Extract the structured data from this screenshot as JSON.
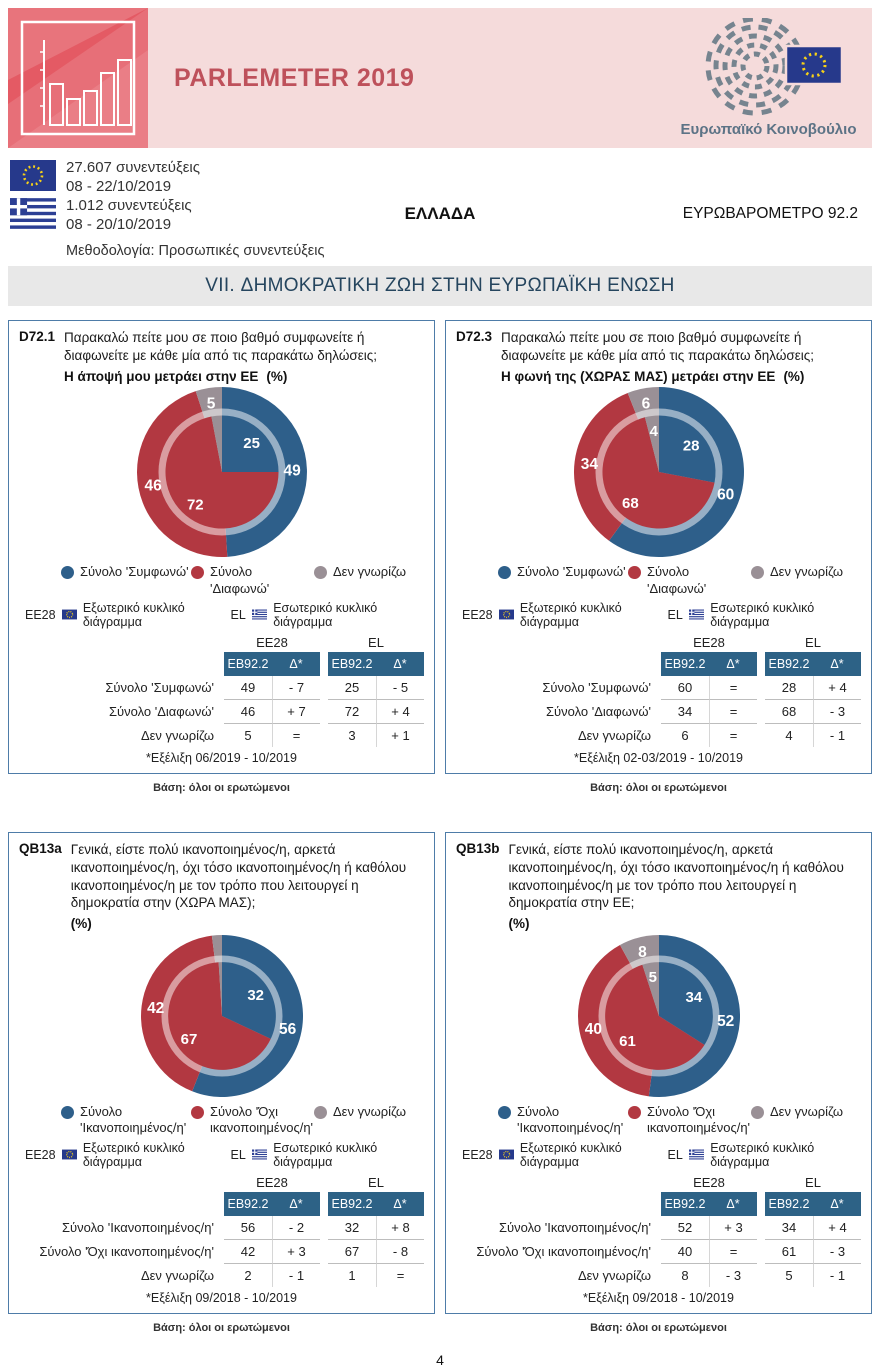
{
  "banner": {
    "title": "PARLEMETER 2019",
    "ep_caption": "Ευρωπαϊκό Κοινοβούλιο"
  },
  "meta": {
    "eu_interviews": "27.607 συνεντεύξεις",
    "eu_dates": "08 - 22/10/2019",
    "el_interviews": "1.012 συνεντεύξεις",
    "el_dates": "08 - 20/10/2019",
    "methodology": "Μεθοδολογία: Προσωπικές συνεντεύξεις",
    "country": "ΕΛΛΑΔΑ",
    "survey": "ΕΥΡΩΒΑΡΟΜΕΤΡΟ 92.2"
  },
  "section_title": "VII. ΔΗΜΟΚΡΑΤΙΚΗ ΖΩΗ ΣΤΗΝ ΕΥΡΩΠΑΪΚΗ ΕΝΩΣΗ",
  "shared": {
    "outer_ring_label": "EE28",
    "outer_ring_text": "Εξωτερικό κυκλικό διάγραμμα",
    "inner_ring_label": "EL",
    "inner_ring_text": "Εσωτερικό κυκλικό διάγραμμα",
    "base": "Βάση: όλοι οι ερωτώμενοι",
    "col_headers": [
      "EB92.2",
      "Δ*"
    ]
  },
  "colors": {
    "blue": "#2E5F8A",
    "red": "#B23841",
    "grey": "#9A9096",
    "table_header_blue": "#2D6286",
    "panel_border": "#4E7CA8",
    "banner_pink": "#F5DBDB",
    "logo_red": "#E45A64",
    "title_red": "#BE515B",
    "section_grey": "#E8E8E8",
    "ep_grey": "#76848F",
    "eu_flag_blue": "#26398B",
    "star_yellow": "#F7D117"
  },
  "page_number": "4",
  "panels": [
    {
      "id": "D72.1",
      "question": "Παρακαλώ πείτε μου σε ποιο βαθμό συμφωνείτε ή διαφωνείτε με κάθε μία από τις παρακάτω δηλώσεις;",
      "statement": "Η άποψή μου μετράει στην ΕΕ",
      "pct": "(%)",
      "legend": [
        {
          "label": "Σύνολο 'Συμφωνώ'",
          "color": "blue"
        },
        {
          "label": "Σύνολο 'Διαφωνώ'",
          "color": "red"
        },
        {
          "label": "Δεν γνωρίζω",
          "color": "grey"
        }
      ],
      "donut": {
        "outer": [
          49,
          46,
          5
        ],
        "inner": [
          25,
          72,
          3
        ],
        "outer_labels": [
          "49",
          "46",
          "5"
        ],
        "inner_labels": [
          "25",
          "72",
          ""
        ]
      },
      "table": {
        "group_headers": [
          "EE28",
          "EL"
        ],
        "rows": [
          {
            "label": "Σύνολο 'Συμφωνώ'",
            "values": [
              "49",
              "- 7",
              "25",
              "- 5"
            ]
          },
          {
            "label": "Σύνολο 'Διαφωνώ'",
            "values": [
              "46",
              "+ 7",
              "72",
              "+ 4"
            ]
          },
          {
            "label": "Δεν γνωρίζω",
            "values": [
              "5",
              "=",
              "3",
              "+ 1"
            ]
          }
        ],
        "footnote": "*Εξέλιξη 06/2019 - 10/2019"
      }
    },
    {
      "id": "D72.3",
      "question": "Παρακαλώ πείτε μου σε ποιο βαθμό συμφωνείτε ή διαφωνείτε με κάθε μία από τις παρακάτω δηλώσεις;",
      "statement": "Η φωνή της (ΧΩΡΑΣ ΜΑΣ) μετράει στην ΕΕ",
      "pct": "(%)",
      "legend": [
        {
          "label": "Σύνολο 'Συμφωνώ'",
          "color": "blue"
        },
        {
          "label": "Σύνολο 'Διαφωνώ'",
          "color": "red"
        },
        {
          "label": "Δεν γνωρίζω",
          "color": "grey"
        }
      ],
      "donut": {
        "outer": [
          60,
          34,
          6
        ],
        "inner": [
          28,
          68,
          4
        ],
        "outer_labels": [
          "60",
          "34",
          "6"
        ],
        "inner_labels": [
          "28",
          "68",
          "4"
        ]
      },
      "table": {
        "group_headers": [
          "EE28",
          "EL"
        ],
        "rows": [
          {
            "label": "Σύνολο 'Συμφωνώ'",
            "values": [
              "60",
              "=",
              "28",
              "+ 4"
            ]
          },
          {
            "label": "Σύνολο 'Διαφωνώ'",
            "values": [
              "34",
              "=",
              "68",
              "- 3"
            ]
          },
          {
            "label": "Δεν γνωρίζω",
            "values": [
              "6",
              "=",
              "4",
              "- 1"
            ]
          }
        ],
        "footnote": "*Εξέλιξη 02-03/2019 - 10/2019"
      }
    },
    {
      "id": "QB13a",
      "question": "Γενικά, είστε πολύ ικανοποιημένος/η, αρκετά ικανοποιημένος/η, όχι τόσο ικανοποιημένος/η ή καθόλου ικανοποιημένος/η με τον τρόπο που λειτουργεί η δημοκρατία στην (ΧΩΡΑ ΜΑΣ);",
      "statement": "",
      "pct": "(%)",
      "legend": [
        {
          "label": "Σύνολο\n'Ικανοποιημένος/η'",
          "color": "blue"
        },
        {
          "label": "Σύνολο 'Όχι\nικανοποιημένος/η'",
          "color": "red"
        },
        {
          "label": "Δεν γνωρίζω",
          "color": "grey"
        }
      ],
      "donut": {
        "outer": [
          56,
          42,
          2
        ],
        "inner": [
          32,
          67,
          1
        ],
        "outer_labels": [
          "56",
          "42",
          ""
        ],
        "inner_labels": [
          "32",
          "67",
          ""
        ]
      },
      "table": {
        "group_headers": [
          "EE28",
          "EL"
        ],
        "rows": [
          {
            "label": "Σύνολο 'Ικανοποιημένος/η'",
            "values": [
              "56",
              "- 2",
              "32",
              "+ 8"
            ]
          },
          {
            "label": "Σύνολο 'Όχι ικανοποιημένος/η'",
            "values": [
              "42",
              "+ 3",
              "67",
              "- 8"
            ]
          },
          {
            "label": "Δεν γνωρίζω",
            "values": [
              "2",
              "- 1",
              "1",
              "="
            ]
          }
        ],
        "footnote": "*Εξέλιξη 09/2018 - 10/2019"
      }
    },
    {
      "id": "QB13b",
      "question": "Γενικά, είστε πολύ ικανοποιημένος/η, αρκετά ικανοποιημένος/η, όχι τόσο ικανοποιημένος/η ή καθόλου ικανοποιημένος/η με τον τρόπο που λειτουργεί η δημοκρατία στην ΕΕ;",
      "statement": "",
      "pct": "(%)",
      "legend": [
        {
          "label": "Σύνολο\n'Ικανοποιημένος/η'",
          "color": "blue"
        },
        {
          "label": "Σύνολο 'Όχι\nικανοποιημένος/η'",
          "color": "red"
        },
        {
          "label": "Δεν γνωρίζω",
          "color": "grey"
        }
      ],
      "donut": {
        "outer": [
          52,
          40,
          8
        ],
        "inner": [
          34,
          61,
          5
        ],
        "outer_labels": [
          "52",
          "40",
          "8"
        ],
        "inner_labels": [
          "34",
          "61",
          "5"
        ]
      },
      "table": {
        "group_headers": [
          "EE28",
          "EL"
        ],
        "rows": [
          {
            "label": "Σύνολο 'Ικανοποιημένος/η'",
            "values": [
              "52",
              "+ 3",
              "34",
              "+ 4"
            ]
          },
          {
            "label": "Σύνολο 'Όχι ικανοποιημένος/η'",
            "values": [
              "40",
              "=",
              "61",
              "- 3"
            ]
          },
          {
            "label": "Δεν γνωρίζω",
            "values": [
              "8",
              "- 3",
              "5",
              "- 1"
            ]
          }
        ],
        "footnote": "*Εξέλιξη 09/2018 - 10/2019"
      }
    }
  ],
  "chart_data": [
    {
      "type": "pie",
      "subtype": "double_donut",
      "question_id": "D72.1",
      "title": "Η άποψή μου μετράει στην ΕΕ (%)",
      "categories": [
        "Σύνολο 'Συμφωνώ'",
        "Σύνολο 'Διαφωνώ'",
        "Δεν γνωρίζω"
      ],
      "series": [
        {
          "name": "EE28",
          "ring": "outer",
          "values": [
            49,
            46,
            5
          ],
          "deltas": [
            "- 7",
            "+ 7",
            "="
          ]
        },
        {
          "name": "EL",
          "ring": "inner",
          "values": [
            25,
            72,
            3
          ],
          "deltas": [
            "- 5",
            "+ 4",
            "+ 1"
          ]
        }
      ],
      "colors": [
        "#2E5F8A",
        "#B23841",
        "#9A9096"
      ],
      "evolution": "06/2019 - 10/2019"
    },
    {
      "type": "pie",
      "subtype": "double_donut",
      "question_id": "D72.3",
      "title": "Η φωνή της (ΧΩΡΑΣ ΜΑΣ) μετράει στην ΕΕ (%)",
      "categories": [
        "Σύνολο 'Συμφωνώ'",
        "Σύνολο 'Διαφωνώ'",
        "Δεν γνωρίζω"
      ],
      "series": [
        {
          "name": "EE28",
          "ring": "outer",
          "values": [
            60,
            34,
            6
          ],
          "deltas": [
            "=",
            "=",
            "="
          ]
        },
        {
          "name": "EL",
          "ring": "inner",
          "values": [
            28,
            68,
            4
          ],
          "deltas": [
            "+ 4",
            "- 3",
            "- 1"
          ]
        }
      ],
      "colors": [
        "#2E5F8A",
        "#B23841",
        "#9A9096"
      ],
      "evolution": "02-03/2019 - 10/2019"
    },
    {
      "type": "pie",
      "subtype": "double_donut",
      "question_id": "QB13a",
      "title": "Ικανοποίηση από τη δημοκρατία στην (ΧΩΡΑ ΜΑΣ) (%)",
      "categories": [
        "Σύνολο 'Ικανοποιημένος/η'",
        "Σύνολο 'Όχι ικανοποιημένος/η'",
        "Δεν γνωρίζω"
      ],
      "series": [
        {
          "name": "EE28",
          "ring": "outer",
          "values": [
            56,
            42,
            2
          ],
          "deltas": [
            "- 2",
            "+ 3",
            "- 1"
          ]
        },
        {
          "name": "EL",
          "ring": "inner",
          "values": [
            32,
            67,
            1
          ],
          "deltas": [
            "+ 8",
            "- 8",
            "="
          ]
        }
      ],
      "colors": [
        "#2E5F8A",
        "#B23841",
        "#9A9096"
      ],
      "evolution": "09/2018 - 10/2019"
    },
    {
      "type": "pie",
      "subtype": "double_donut",
      "question_id": "QB13b",
      "title": "Ικανοποίηση από τη δημοκρατία στην ΕΕ (%)",
      "categories": [
        "Σύνολο 'Ικανοποιημένος/η'",
        "Σύνολο 'Όχι ικανοποιημένος/η'",
        "Δεν γνωρίζω"
      ],
      "series": [
        {
          "name": "EE28",
          "ring": "outer",
          "values": [
            52,
            40,
            8
          ],
          "deltas": [
            "+ 3",
            "=",
            "- 3"
          ]
        },
        {
          "name": "EL",
          "ring": "inner",
          "values": [
            34,
            61,
            5
          ],
          "deltas": [
            "+ 4",
            "- 3",
            "- 1"
          ]
        }
      ],
      "colors": [
        "#2E5F8A",
        "#B23841",
        "#9A9096"
      ],
      "evolution": "09/2018 - 10/2019"
    }
  ]
}
